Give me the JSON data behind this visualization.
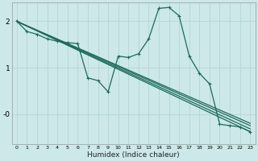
{
  "xlabel": "Humidex (Indice chaleur)",
  "bg_color": "#cce8e8",
  "grid_color": "#b8d8d8",
  "line_color": "#1a6b5a",
  "xlim": [
    -0.5,
    23.5
  ],
  "ylim": [
    -0.65,
    2.4
  ],
  "yticks": [
    2,
    1,
    0
  ],
  "ytick_labels": [
    "2",
    "1",
    "-0"
  ],
  "xticks": [
    0,
    1,
    2,
    3,
    4,
    5,
    6,
    7,
    8,
    9,
    10,
    11,
    12,
    13,
    14,
    15,
    16,
    17,
    18,
    19,
    20,
    21,
    22,
    23
  ],
  "series": [
    {
      "x": [
        0,
        1,
        2,
        3,
        4,
        5,
        6,
        7,
        8,
        9,
        10,
        11,
        12,
        13,
        14,
        15,
        16,
        17,
        18,
        19,
        20,
        21,
        22,
        23
      ],
      "y": [
        2.0,
        1.78,
        1.72,
        1.62,
        1.57,
        1.54,
        1.52,
        0.78,
        0.72,
        0.48,
        1.25,
        1.22,
        1.3,
        1.62,
        2.28,
        2.3,
        2.12,
        1.25,
        0.88,
        0.65,
        -0.22,
        -0.25,
        -0.28,
        -0.38
      ],
      "marker": true
    },
    {
      "x": [
        0,
        23
      ],
      "y": [
        2.0,
        -0.38
      ],
      "marker": false
    },
    {
      "x": [
        0,
        23
      ],
      "y": [
        2.0,
        -0.32
      ],
      "marker": false
    },
    {
      "x": [
        0,
        23
      ],
      "y": [
        2.0,
        -0.25
      ],
      "marker": false
    },
    {
      "x": [
        0,
        23
      ],
      "y": [
        2.0,
        -0.2
      ],
      "marker": false
    }
  ]
}
